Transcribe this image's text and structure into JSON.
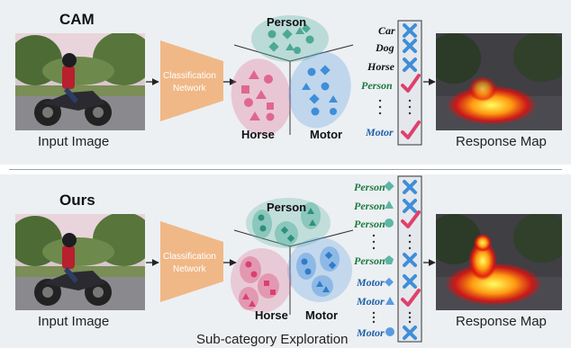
{
  "top": {
    "title": "CAM",
    "input_caption": "Input Image",
    "network_label_line1": "Classification",
    "network_label_line2": "Network",
    "groups": {
      "person": "Person",
      "horse": "Horse",
      "motor": "Motor"
    },
    "class_labels": [
      "Car",
      "Dog",
      "Horse",
      "Person",
      "Motor"
    ],
    "output_caption": "Response Map"
  },
  "bottom": {
    "title": "Ours",
    "input_caption": "Input Image",
    "network_label_line1": "Classification",
    "network_label_line2": "Network",
    "groups": {
      "person": "Person",
      "horse": "Horse",
      "motor": "Motor"
    },
    "class_labels": [
      "Person",
      "Person",
      "Person",
      "Person",
      "Motor",
      "Motor",
      "Motor"
    ],
    "output_caption": "Response Map",
    "footer": "Sub-category Exploration"
  },
  "colors": {
    "person": "#5fb5a6",
    "horse": "#e0678d",
    "motor": "#5a9be0",
    "network": "#f0b887",
    "check": "#e0406d",
    "cross": "#3f8ed8",
    "person_label": "#1e7a3e",
    "motor_label": "#1f5ea8"
  },
  "icons": [
    "cross-icon",
    "check-icon",
    "vertical-ellipsis-icon",
    "arrow-right-icon"
  ]
}
